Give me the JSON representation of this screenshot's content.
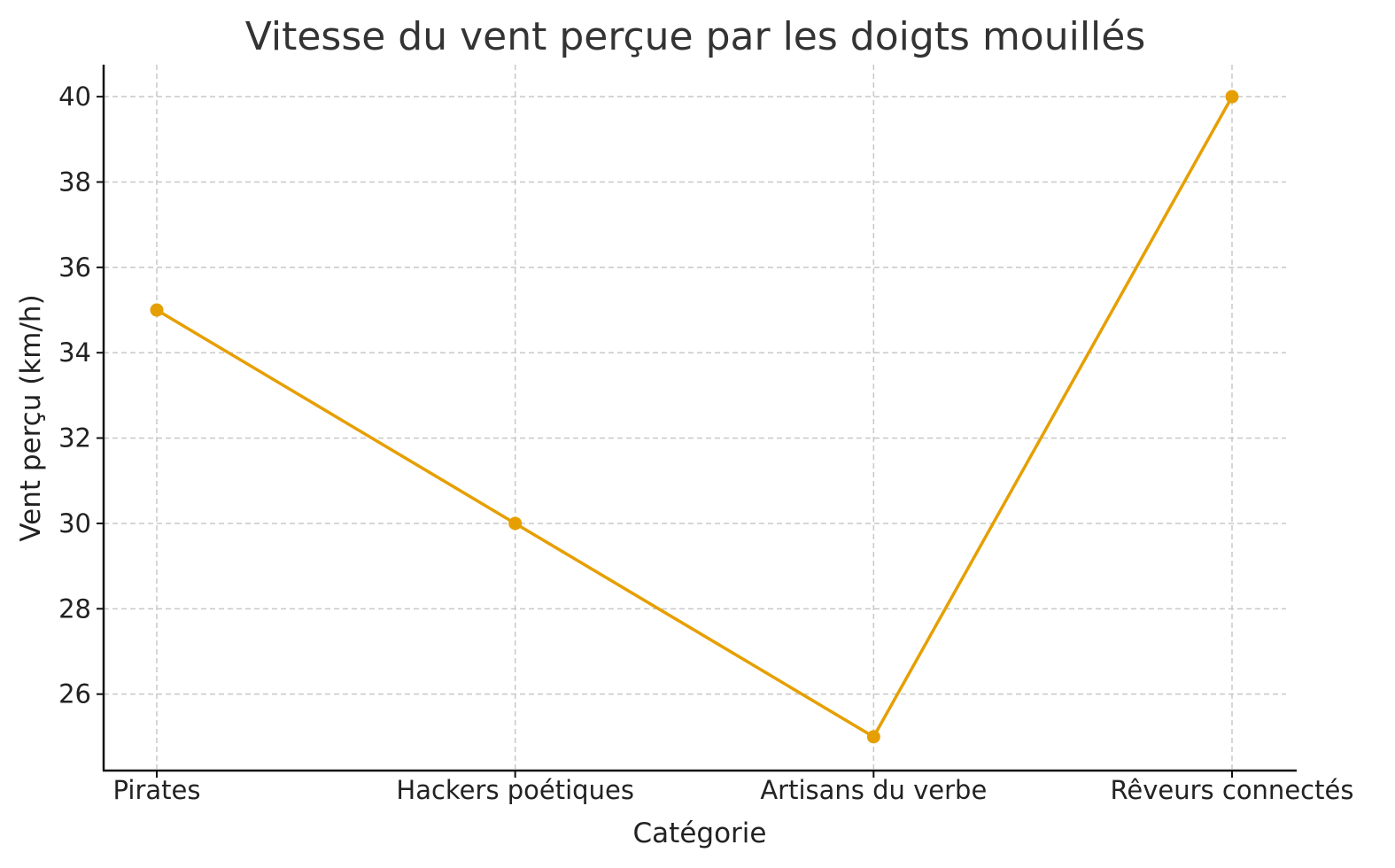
{
  "chart_data": {
    "type": "line",
    "title": "Vitesse du vent perçue par les doigts mouillés",
    "xlabel": "Catégorie",
    "ylabel": "Vent perçu (km/h)",
    "categories": [
      "Pirates",
      "Hackers poétiques",
      "Artisans du verbe",
      "Rêveurs connectés"
    ],
    "values": [
      35,
      30,
      25,
      40
    ],
    "ylim": [
      24.25,
      40.75
    ],
    "yticks": [
      26,
      28,
      30,
      32,
      34,
      36,
      38,
      40
    ],
    "grid": true,
    "color": "#E69F00"
  }
}
